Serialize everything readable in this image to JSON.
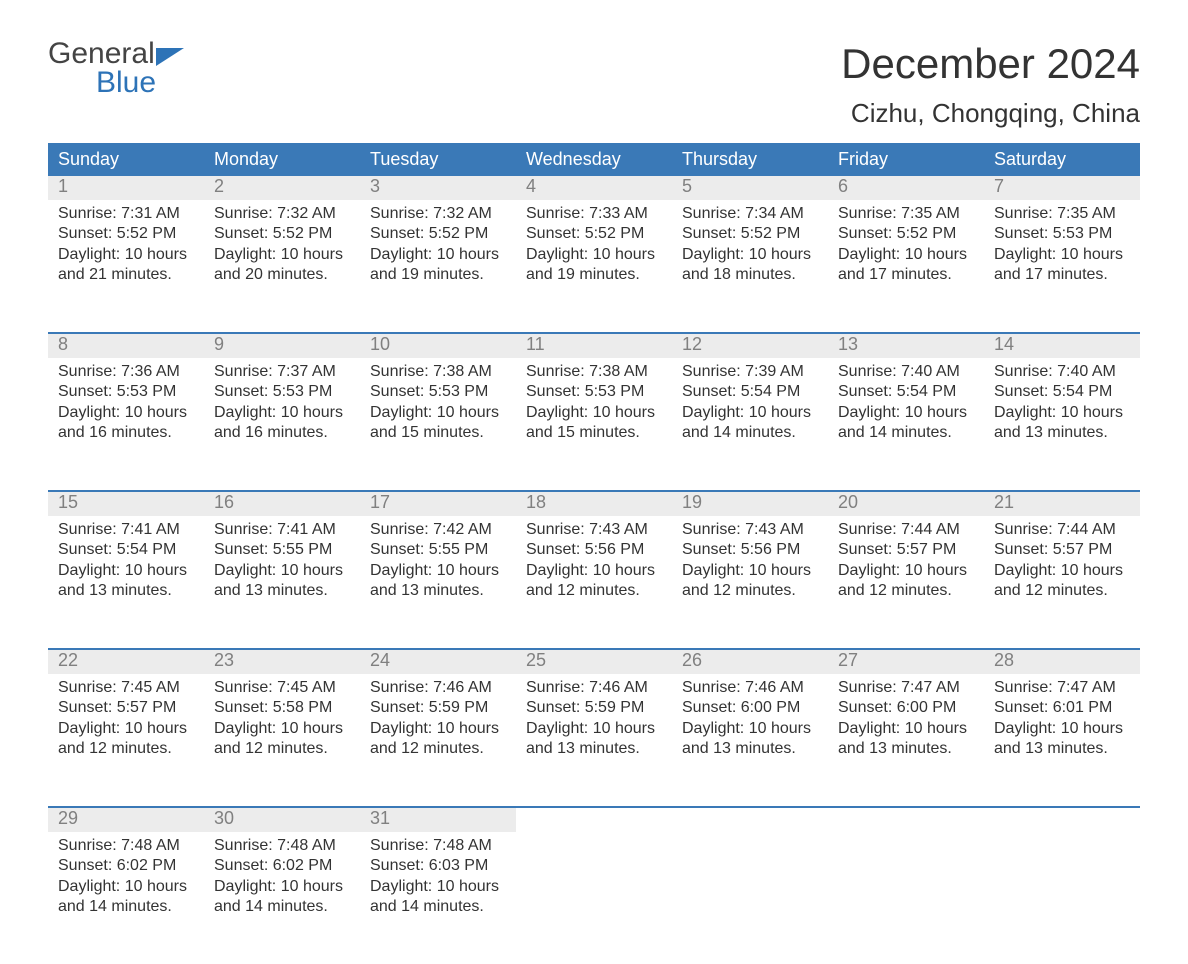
{
  "logo": {
    "top": "General",
    "bottom": "Blue",
    "color_top": "#444444",
    "color_bottom": "#2d73b7"
  },
  "title": "December 2024",
  "location": "Cizhu, Chongqing, China",
  "colors": {
    "header_bg": "#3a79b7",
    "header_text": "#ffffff",
    "daynum_bg": "#ececec",
    "daynum_text": "#808080",
    "body_text": "#333333",
    "background": "#ffffff"
  },
  "typography": {
    "title_fontsize": 42,
    "location_fontsize": 26,
    "dow_fontsize": 18,
    "daynum_fontsize": 18,
    "body_fontsize": 16
  },
  "dow": [
    "Sunday",
    "Monday",
    "Tuesday",
    "Wednesday",
    "Thursday",
    "Friday",
    "Saturday"
  ],
  "days": [
    {
      "n": 1,
      "sunrise": "7:31 AM",
      "sunset": "5:52 PM",
      "daylight": "10 hours and 21 minutes."
    },
    {
      "n": 2,
      "sunrise": "7:32 AM",
      "sunset": "5:52 PM",
      "daylight": "10 hours and 20 minutes."
    },
    {
      "n": 3,
      "sunrise": "7:32 AM",
      "sunset": "5:52 PM",
      "daylight": "10 hours and 19 minutes."
    },
    {
      "n": 4,
      "sunrise": "7:33 AM",
      "sunset": "5:52 PM",
      "daylight": "10 hours and 19 minutes."
    },
    {
      "n": 5,
      "sunrise": "7:34 AM",
      "sunset": "5:52 PM",
      "daylight": "10 hours and 18 minutes."
    },
    {
      "n": 6,
      "sunrise": "7:35 AM",
      "sunset": "5:52 PM",
      "daylight": "10 hours and 17 minutes."
    },
    {
      "n": 7,
      "sunrise": "7:35 AM",
      "sunset": "5:53 PM",
      "daylight": "10 hours and 17 minutes."
    },
    {
      "n": 8,
      "sunrise": "7:36 AM",
      "sunset": "5:53 PM",
      "daylight": "10 hours and 16 minutes."
    },
    {
      "n": 9,
      "sunrise": "7:37 AM",
      "sunset": "5:53 PM",
      "daylight": "10 hours and 16 minutes."
    },
    {
      "n": 10,
      "sunrise": "7:38 AM",
      "sunset": "5:53 PM",
      "daylight": "10 hours and 15 minutes."
    },
    {
      "n": 11,
      "sunrise": "7:38 AM",
      "sunset": "5:53 PM",
      "daylight": "10 hours and 15 minutes."
    },
    {
      "n": 12,
      "sunrise": "7:39 AM",
      "sunset": "5:54 PM",
      "daylight": "10 hours and 14 minutes."
    },
    {
      "n": 13,
      "sunrise": "7:40 AM",
      "sunset": "5:54 PM",
      "daylight": "10 hours and 14 minutes."
    },
    {
      "n": 14,
      "sunrise": "7:40 AM",
      "sunset": "5:54 PM",
      "daylight": "10 hours and 13 minutes."
    },
    {
      "n": 15,
      "sunrise": "7:41 AM",
      "sunset": "5:54 PM",
      "daylight": "10 hours and 13 minutes."
    },
    {
      "n": 16,
      "sunrise": "7:41 AM",
      "sunset": "5:55 PM",
      "daylight": "10 hours and 13 minutes."
    },
    {
      "n": 17,
      "sunrise": "7:42 AM",
      "sunset": "5:55 PM",
      "daylight": "10 hours and 13 minutes."
    },
    {
      "n": 18,
      "sunrise": "7:43 AM",
      "sunset": "5:56 PM",
      "daylight": "10 hours and 12 minutes."
    },
    {
      "n": 19,
      "sunrise": "7:43 AM",
      "sunset": "5:56 PM",
      "daylight": "10 hours and 12 minutes."
    },
    {
      "n": 20,
      "sunrise": "7:44 AM",
      "sunset": "5:57 PM",
      "daylight": "10 hours and 12 minutes."
    },
    {
      "n": 21,
      "sunrise": "7:44 AM",
      "sunset": "5:57 PM",
      "daylight": "10 hours and 12 minutes."
    },
    {
      "n": 22,
      "sunrise": "7:45 AM",
      "sunset": "5:57 PM",
      "daylight": "10 hours and 12 minutes."
    },
    {
      "n": 23,
      "sunrise": "7:45 AM",
      "sunset": "5:58 PM",
      "daylight": "10 hours and 12 minutes."
    },
    {
      "n": 24,
      "sunrise": "7:46 AM",
      "sunset": "5:59 PM",
      "daylight": "10 hours and 12 minutes."
    },
    {
      "n": 25,
      "sunrise": "7:46 AM",
      "sunset": "5:59 PM",
      "daylight": "10 hours and 13 minutes."
    },
    {
      "n": 26,
      "sunrise": "7:46 AM",
      "sunset": "6:00 PM",
      "daylight": "10 hours and 13 minutes."
    },
    {
      "n": 27,
      "sunrise": "7:47 AM",
      "sunset": "6:00 PM",
      "daylight": "10 hours and 13 minutes."
    },
    {
      "n": 28,
      "sunrise": "7:47 AM",
      "sunset": "6:01 PM",
      "daylight": "10 hours and 13 minutes."
    },
    {
      "n": 29,
      "sunrise": "7:48 AM",
      "sunset": "6:02 PM",
      "daylight": "10 hours and 14 minutes."
    },
    {
      "n": 30,
      "sunrise": "7:48 AM",
      "sunset": "6:02 PM",
      "daylight": "10 hours and 14 minutes."
    },
    {
      "n": 31,
      "sunrise": "7:48 AM",
      "sunset": "6:03 PM",
      "daylight": "10 hours and 14 minutes."
    }
  ],
  "labels": {
    "sunrise": "Sunrise: ",
    "sunset": "Sunset: ",
    "daylight": "Daylight: "
  }
}
